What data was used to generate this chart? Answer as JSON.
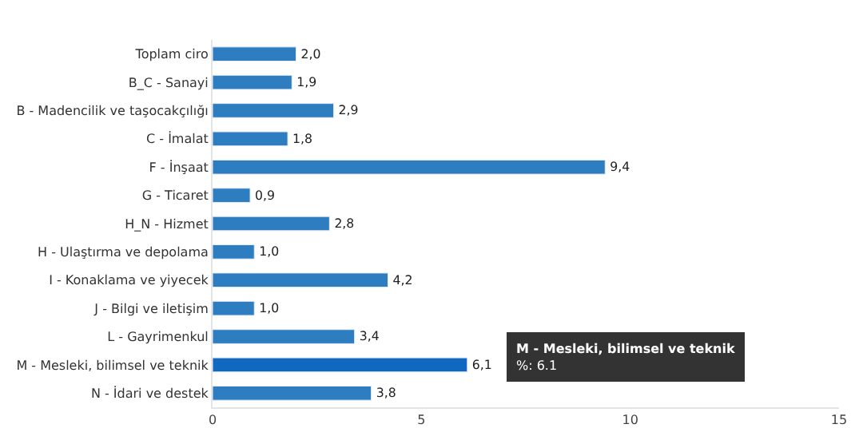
{
  "chart_data": {
    "type": "bar",
    "orientation": "horizontal",
    "categories": [
      "Toplam ciro",
      "B_C - Sanayi",
      "B - Madencilik ve taşocakçılığı",
      "C - İmalat",
      "F - İnşaat",
      "G - Ticaret",
      "H_N - Hizmet",
      "H - Ulaştırma ve depolama",
      "I - Konaklama ve yiyecek",
      "J - Bilgi ve iletişim",
      "L - Gayrimenkul",
      "M - Mesleki, bilimsel ve teknik",
      "N - İdari ve destek"
    ],
    "values": [
      2.0,
      1.9,
      2.9,
      1.8,
      9.4,
      0.9,
      2.8,
      1.0,
      4.2,
      1.0,
      3.4,
      6.1,
      3.8
    ],
    "colors": [
      "#2e7dc1",
      "#2e7dc1",
      "#2e7dc1",
      "#2e7dc1",
      "#2e7dc1",
      "#2e7dc1",
      "#2e7dc1",
      "#2e7dc1",
      "#2e7dc1",
      "#2e7dc1",
      "#2e7dc1",
      "#1168c0",
      "#2e7dc1"
    ],
    "value_labels": [
      "2,0",
      "1,9",
      "2,9",
      "1,8",
      "9,4",
      "0,9",
      "2,8",
      "1,0",
      "4,2",
      "1,0",
      "3,4",
      "6,1",
      "3,8"
    ],
    "xlim": [
      0,
      15
    ],
    "xticks": [
      0,
      5,
      10,
      15
    ],
    "legend": false,
    "annotations": [
      "M - Mesleki, bilimsel ve teknik\n%: 6.1"
    ]
  }
}
